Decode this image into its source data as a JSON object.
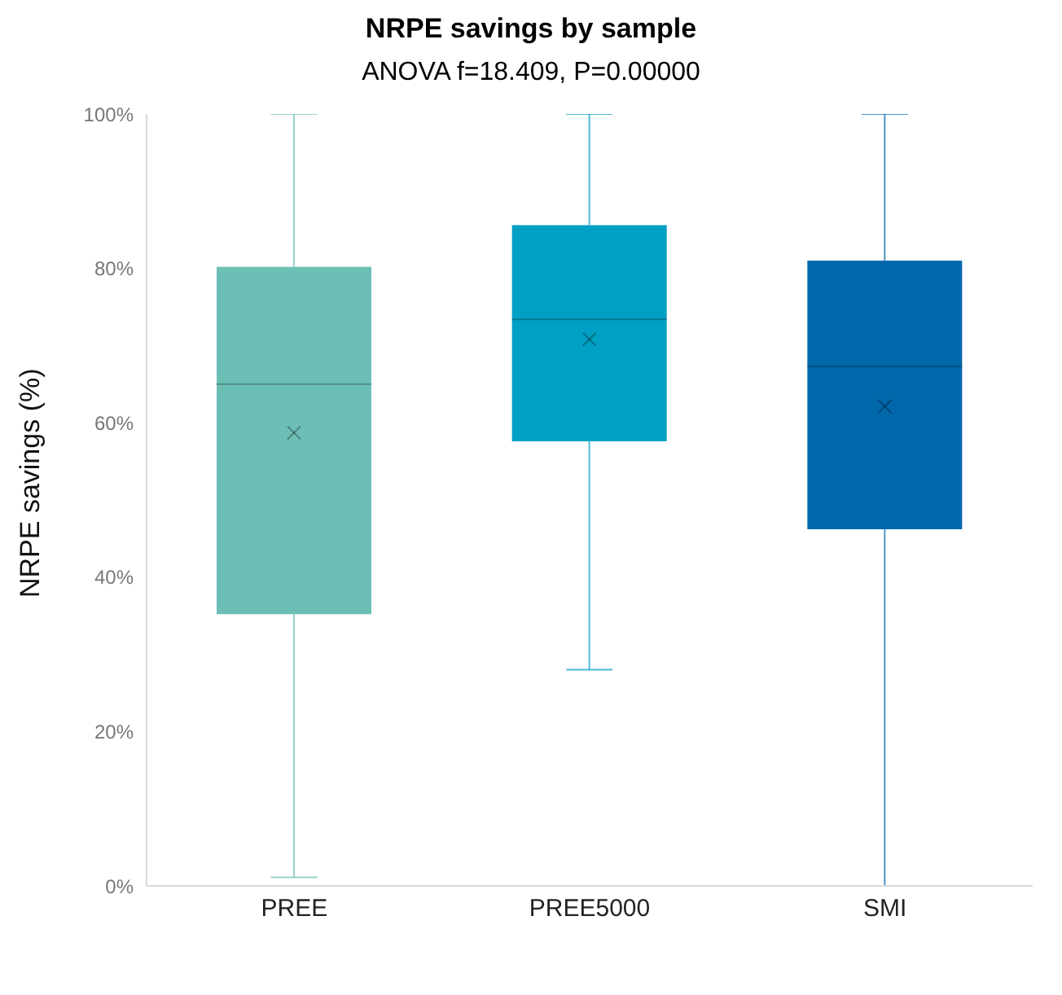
{
  "chart_data": {
    "type": "box",
    "title": "NRPE savings by sample",
    "subtitle": "ANOVA f=18.409, P=0.00000",
    "ylabel": "NRPE savings (%)",
    "categories": [
      "PREE",
      "PREE5000",
      "SMI"
    ],
    "colors": [
      "#6cbfb5",
      "#00a0c4",
      "#0067ab"
    ],
    "boxes": [
      {
        "low": 1.1,
        "q1": 35.2,
        "median": 65.0,
        "q3": 80.2,
        "high": 100,
        "mean": 58.7
      },
      {
        "low": 28.0,
        "q1": 57.6,
        "median": 73.4,
        "q3": 85.6,
        "high": 100,
        "mean": 70.8
      },
      {
        "low": 0,
        "q1": 46.2,
        "median": 67.3,
        "q3": 81.0,
        "high": 100,
        "mean": 62.1
      }
    ],
    "ylim": [
      0,
      100
    ],
    "yticks": [
      {
        "value": 0,
        "label": "0%"
      },
      {
        "value": 20,
        "label": "20%"
      },
      {
        "value": 40,
        "label": "40%"
      },
      {
        "value": 60,
        "label": "60%"
      },
      {
        "value": 80,
        "label": "80%"
      },
      {
        "value": 100,
        "label": "100%"
      }
    ],
    "grid": false,
    "legend": false
  }
}
